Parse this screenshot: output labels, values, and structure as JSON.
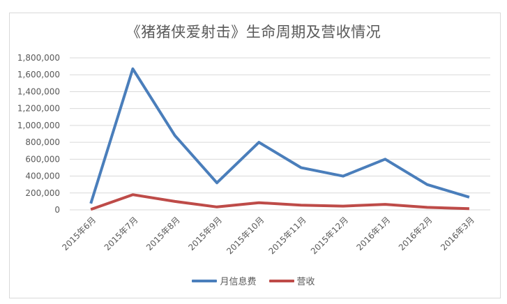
{
  "chart_data": {
    "type": "line",
    "title": "《猪猪侠爱射击》生命周期及营收情况",
    "xlabel": "",
    "ylabel": "",
    "categories": [
      "2015年6月",
      "2015年7月",
      "2015年8月",
      "2015年9月",
      "2015年10月",
      "2015年11月",
      "2015年12月",
      "2016年1月",
      "2016年2月",
      "2016年3月"
    ],
    "series": [
      {
        "name": "月信息费",
        "color": "#4a7ebb",
        "values": [
          75000,
          1670000,
          880000,
          320000,
          800000,
          500000,
          400000,
          600000,
          300000,
          150000
        ]
      },
      {
        "name": "营收",
        "color": "#be4b48",
        "values": [
          5000,
          180000,
          100000,
          35000,
          85000,
          55000,
          45000,
          65000,
          30000,
          15000
        ]
      }
    ],
    "yticks": [
      "0",
      "200,000",
      "400,000",
      "600,000",
      "800,000",
      "1,000,000",
      "1,200,000",
      "1,400,000",
      "1,600,000",
      "1,800,000"
    ],
    "ylim": [
      0,
      1800000
    ],
    "grid": true,
    "legend_position": "bottom"
  },
  "title": "《猪猪侠爱射击》生命周期及营收情况",
  "legend": {
    "items": [
      {
        "label": "月信息费",
        "color": "#4a7ebb"
      },
      {
        "label": "营收",
        "color": "#be4b48"
      }
    ]
  }
}
